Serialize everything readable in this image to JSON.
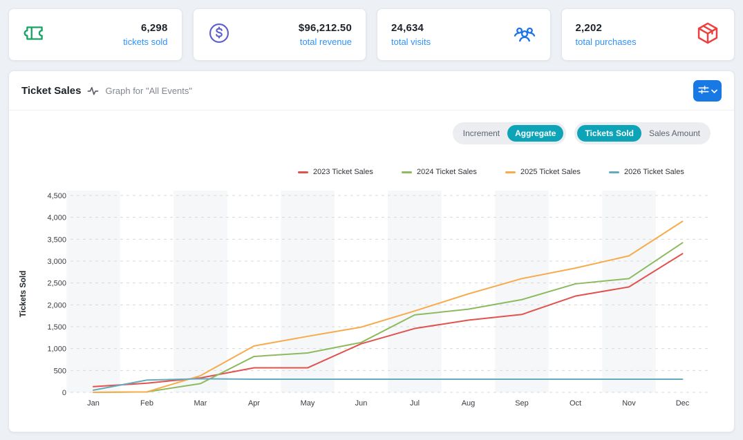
{
  "cards": [
    {
      "value": "6,298",
      "label": "tickets sold",
      "icon": "ticket-icon",
      "icon_color": "#16a362"
    },
    {
      "value": "$96,212.50",
      "label": "total revenue",
      "icon": "dollar-icon",
      "icon_color": "#5a5fd0"
    },
    {
      "value": "24,634",
      "label": "total visits",
      "icon": "users-icon",
      "icon_color": "#1b74e8"
    },
    {
      "value": "2,202",
      "label": "total purchases",
      "icon": "package-icon",
      "icon_color": "#ee3e3e"
    }
  ],
  "panel": {
    "title": "Ticket Sales",
    "subtitle": "Graph for \"All Events\""
  },
  "toggles": {
    "mode": {
      "options": [
        "Increment",
        "Aggregate"
      ],
      "active": "Aggregate"
    },
    "metric": {
      "options": [
        "Tickets Sold",
        "Sales Amount"
      ],
      "active": "Tickets Sold"
    }
  },
  "chart_data": {
    "type": "line",
    "x": [
      "Jan",
      "Feb",
      "Mar",
      "Apr",
      "May",
      "Jun",
      "Jul",
      "Aug",
      "Sep",
      "Oct",
      "Nov",
      "Dec"
    ],
    "series": [
      {
        "name": "2023 Ticket Sales",
        "color": "#e2514d",
        "values": [
          130,
          210,
          330,
          560,
          560,
          1110,
          1460,
          1650,
          1780,
          2200,
          2410,
          3170
        ]
      },
      {
        "name": "2024 Ticket Sales",
        "color": "#8cba5e",
        "values": [
          0,
          10,
          200,
          820,
          900,
          1140,
          1770,
          1900,
          2120,
          2480,
          2600,
          3420
        ]
      },
      {
        "name": "2025 Ticket Sales",
        "color": "#f7ab4a",
        "values": [
          0,
          10,
          380,
          1060,
          1280,
          1490,
          1860,
          2250,
          2600,
          2840,
          3120,
          3910
        ]
      },
      {
        "name": "2026 Ticket Sales",
        "color": "#65a9bd",
        "values": [
          50,
          280,
          310,
          300,
          300,
          300,
          300,
          300,
          300,
          300,
          300,
          300
        ]
      }
    ],
    "title": "Ticket Sales",
    "xlabel": "",
    "ylabel": "Tickets Sold",
    "ylim": [
      0,
      4500
    ],
    "ytick_step": 500,
    "grid": "horizontal-dashed",
    "legend_position": "top",
    "striped_months": "odd (Jan, Mar, May, Jul, Sep, Nov)"
  },
  "colors": {
    "page_bg": "#edf0f4",
    "accent_blue": "#2e90fa",
    "button_blue": "#1878e4",
    "toggle_active": "#0da4b8",
    "grid": "#d5d8dc",
    "band": "#f6f7f9",
    "axis_text": "#383c41"
  }
}
